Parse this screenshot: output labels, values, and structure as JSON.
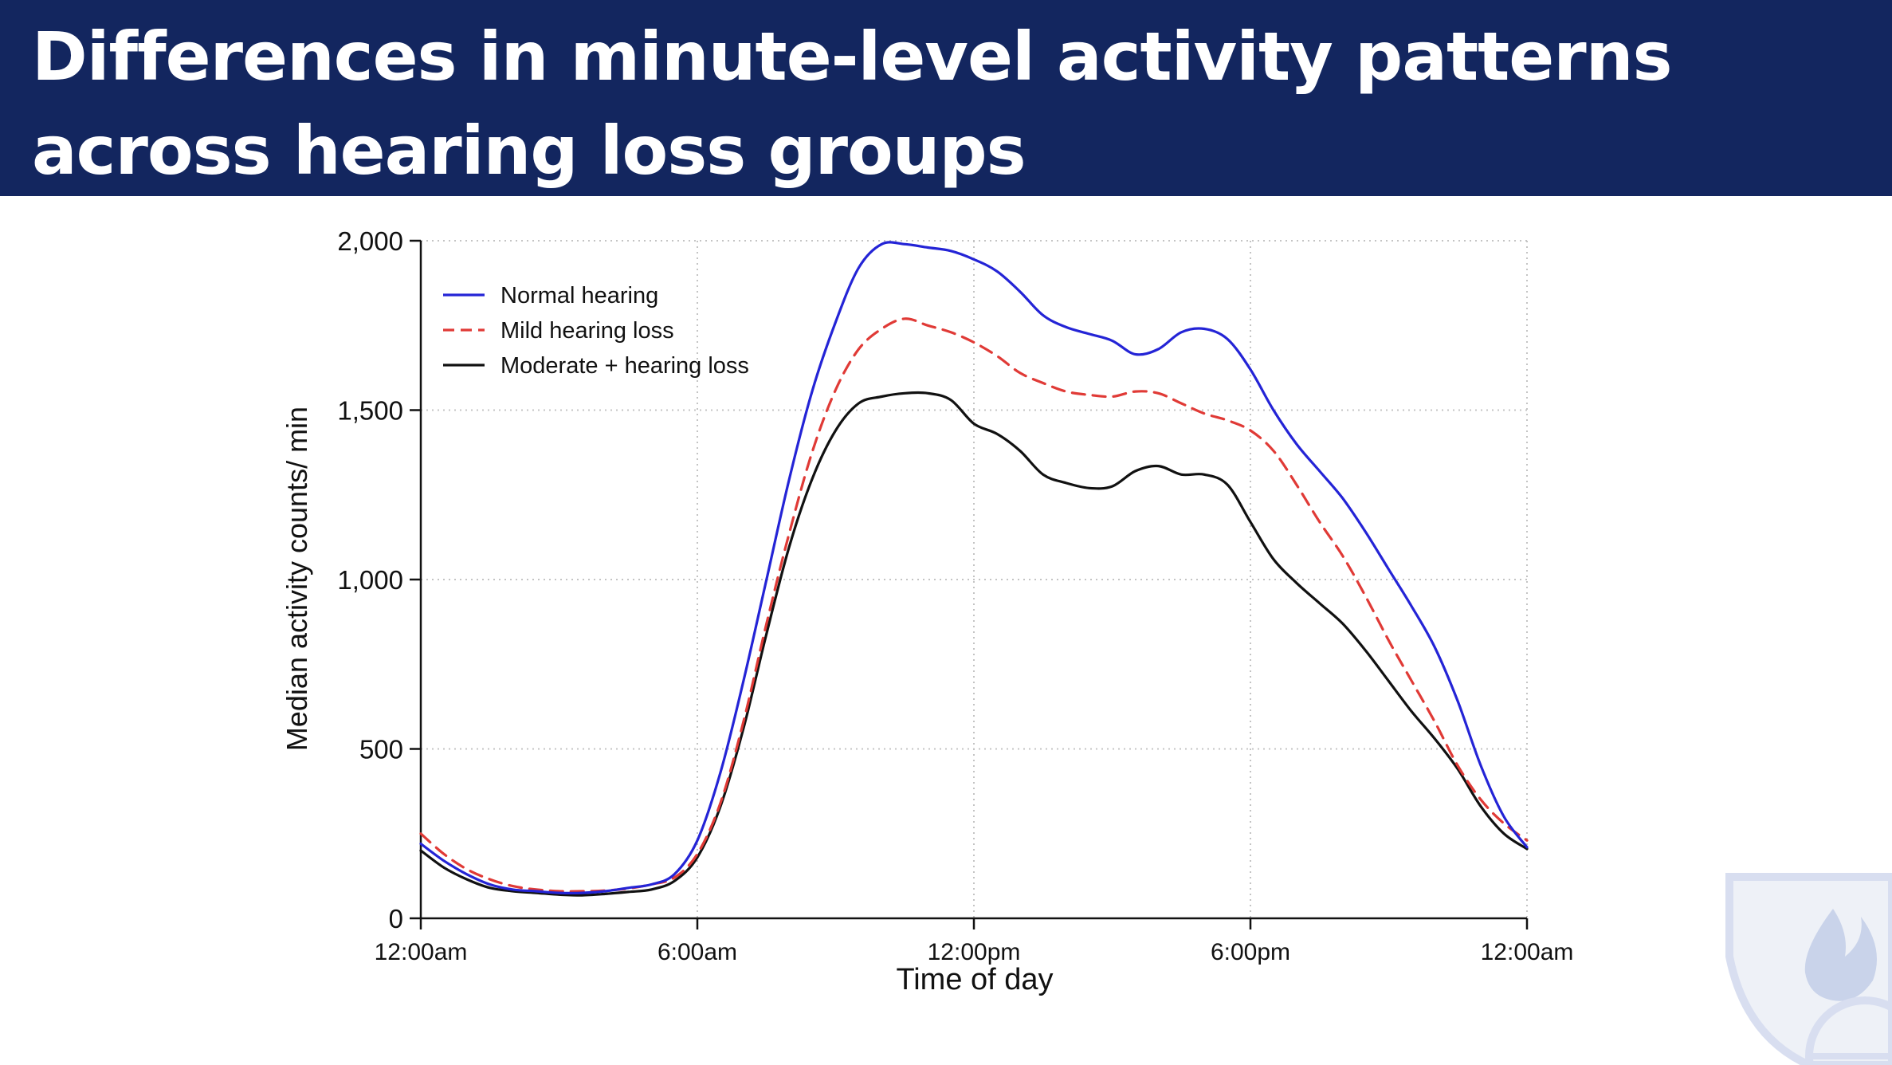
{
  "slide": {
    "title": "Differences in minute-level activity patterns across hearing loss groups",
    "header_color": "#13265f"
  },
  "watermark": {
    "icon": "university-shield-logo-icon"
  },
  "chart_data": {
    "type": "line",
    "title": "",
    "xlabel": "Time of day",
    "ylabel": "Median activity counts/ min",
    "x_unit": "hours since 12:00am",
    "xlim": [
      0,
      24
    ],
    "ylim": [
      0,
      2000
    ],
    "x_ticks": [
      {
        "value": 0,
        "label": "12:00am"
      },
      {
        "value": 6,
        "label": "6:00am"
      },
      {
        "value": 12,
        "label": "12:00pm"
      },
      {
        "value": 18,
        "label": "6:00pm"
      },
      {
        "value": 24,
        "label": "12:00am"
      }
    ],
    "y_ticks": [
      {
        "value": 0,
        "label": "0"
      },
      {
        "value": 500,
        "label": "500"
      },
      {
        "value": 1000,
        "label": "1,000"
      },
      {
        "value": 1500,
        "label": "1,500"
      },
      {
        "value": 2000,
        "label": "2,000"
      }
    ],
    "grid": true,
    "legend_position": "top-left",
    "series": [
      {
        "name": "Normal hearing",
        "color": "#2424d6",
        "dash": "solid",
        "x": [
          0,
          0.5,
          1,
          1.5,
          2,
          2.5,
          3,
          3.5,
          4,
          4.5,
          5,
          5.5,
          6,
          6.5,
          7,
          7.5,
          8,
          8.5,
          9,
          9.5,
          10,
          10.5,
          11,
          11.5,
          12,
          12.5,
          13,
          13.5,
          14,
          14.5,
          15,
          15.5,
          16,
          16.5,
          17,
          17.5,
          18,
          18.5,
          19,
          19.5,
          20,
          20.5,
          21,
          21.5,
          22,
          22.5,
          23,
          23.5,
          24
        ],
        "values": [
          220,
          170,
          130,
          100,
          85,
          80,
          75,
          75,
          80,
          90,
          100,
          130,
          230,
          430,
          700,
          1000,
          1300,
          1560,
          1760,
          1920,
          1990,
          1990,
          1980,
          1970,
          1945,
          1910,
          1850,
          1780,
          1745,
          1725,
          1705,
          1665,
          1680,
          1730,
          1740,
          1710,
          1620,
          1500,
          1400,
          1320,
          1240,
          1140,
          1030,
          920,
          800,
          640,
          450,
          300,
          210
        ]
      },
      {
        "name": "Mild hearing loss",
        "color": "#e03a36",
        "dash": "dashed",
        "x": [
          0,
          0.5,
          1,
          1.5,
          2,
          2.5,
          3,
          3.5,
          4,
          4.5,
          5,
          5.5,
          6,
          6.5,
          7,
          7.5,
          8,
          8.5,
          9,
          9.5,
          10,
          10.5,
          11,
          11.5,
          12,
          12.5,
          13,
          13.5,
          14,
          14.5,
          15,
          15.5,
          16,
          16.5,
          17,
          17.5,
          18,
          18.5,
          19,
          19.5,
          20,
          20.5,
          21,
          21.5,
          22,
          22.5,
          23,
          23.5,
          24
        ],
        "values": [
          250,
          190,
          145,
          115,
          95,
          85,
          80,
          80,
          82,
          88,
          100,
          120,
          190,
          340,
          580,
          870,
          1140,
          1380,
          1560,
          1680,
          1740,
          1770,
          1750,
          1730,
          1700,
          1660,
          1610,
          1580,
          1555,
          1545,
          1540,
          1555,
          1550,
          1520,
          1490,
          1470,
          1440,
          1380,
          1280,
          1170,
          1070,
          950,
          820,
          700,
          580,
          450,
          350,
          280,
          230
        ]
      },
      {
        "name": "Moderate + hearing loss",
        "color": "#111111",
        "dash": "solid",
        "x": [
          0,
          0.5,
          1,
          1.5,
          2,
          2.5,
          3,
          3.5,
          4,
          4.5,
          5,
          5.5,
          6,
          6.5,
          7,
          7.5,
          8,
          8.5,
          9,
          9.5,
          10,
          10.5,
          11,
          11.5,
          12,
          12.5,
          13,
          13.5,
          14,
          14.5,
          15,
          15.5,
          16,
          16.5,
          17,
          17.5,
          18,
          18.5,
          19,
          19.5,
          20,
          20.5,
          21,
          21.5,
          22,
          22.5,
          23,
          23.5,
          24
        ],
        "values": [
          200,
          150,
          115,
          90,
          80,
          75,
          70,
          68,
          72,
          78,
          85,
          110,
          180,
          330,
          560,
          840,
          1100,
          1300,
          1440,
          1520,
          1540,
          1550,
          1550,
          1530,
          1460,
          1430,
          1380,
          1310,
          1285,
          1270,
          1275,
          1320,
          1335,
          1310,
          1310,
          1280,
          1170,
          1060,
          990,
          930,
          870,
          790,
          700,
          610,
          530,
          440,
          330,
          250,
          205
        ]
      }
    ]
  }
}
